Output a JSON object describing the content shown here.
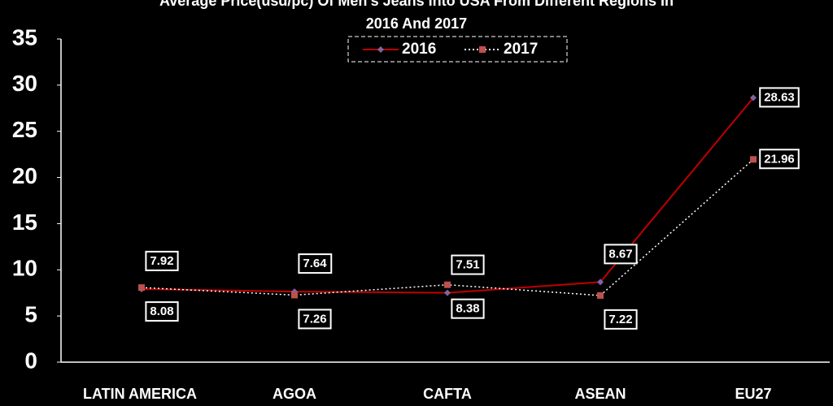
{
  "chart_data": {
    "type": "line",
    "title_lines": [
      "Average Price(usd/pc) Of Men's Jeans Into USA From Different Regions In",
      "2016 And 2017"
    ],
    "categories": [
      "LATIN AMERICA",
      "AGOA",
      "CAFTA",
      "ASEAN",
      "EU27"
    ],
    "series": [
      {
        "name": "2016",
        "color": "#c00000",
        "marker_color": "#8064a2",
        "line_style": "solid",
        "values": [
          7.92,
          7.64,
          7.51,
          8.67,
          28.63
        ]
      },
      {
        "name": "2017",
        "color": "#ffffff",
        "marker_color": "#c0504d",
        "line_style": "dotted",
        "values": [
          8.08,
          7.26,
          8.38,
          7.22,
          21.96
        ]
      }
    ],
    "ylim": [
      0,
      35
    ],
    "yticks": [
      0,
      5,
      10,
      15,
      20,
      25,
      30,
      35
    ],
    "grid": false,
    "legend": "top"
  }
}
